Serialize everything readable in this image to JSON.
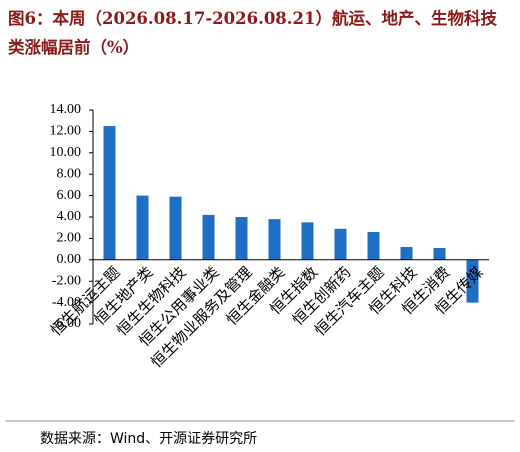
{
  "chart_data": {
    "type": "bar",
    "title": "图6：本周（2026.08.17-2026.08.21）航运、地产、生物科技类涨幅居前（%）",
    "source": "数据来源：Wind、开源证券研究所",
    "categories": [
      "恒生航运主题",
      "恒生地产类",
      "恒生生物科技",
      "恒生公用事业类",
      "恒生物业服务及管理",
      "恒生金融类",
      "恒生指数",
      "恒生创新药",
      "恒生汽车主题",
      "恒生科技",
      "恒生消费",
      "恒生传媒"
    ],
    "values": [
      12.5,
      6.0,
      5.9,
      4.2,
      4.0,
      3.8,
      3.5,
      2.9,
      2.6,
      1.2,
      1.1,
      -4.0
    ],
    "color": "#1f6fc5",
    "ylim": [
      -6,
      14
    ],
    "yticks": [
      {
        "value": -6,
        "label": "-6.00"
      },
      {
        "value": -4,
        "label": "-4.00"
      },
      {
        "value": -2,
        "label": "-2.00"
      },
      {
        "value": 0,
        "label": "0.00"
      },
      {
        "value": 2,
        "label": "2.00"
      },
      {
        "value": 4,
        "label": "4.00"
      },
      {
        "value": 6,
        "label": "6.00"
      },
      {
        "value": 8,
        "label": "8.00"
      },
      {
        "value": 10,
        "label": "10.00"
      },
      {
        "value": 12,
        "label": "12.00"
      },
      {
        "value": 14,
        "label": "14.00"
      }
    ],
    "grid": false
  }
}
